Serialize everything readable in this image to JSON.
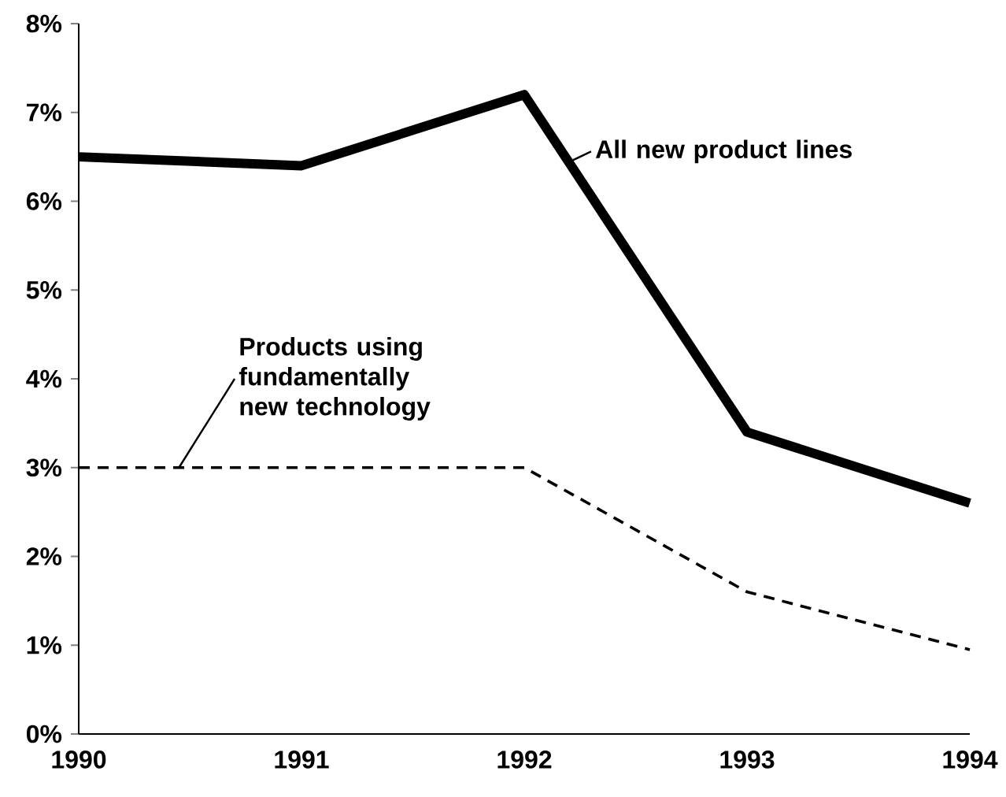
{
  "chart_data": {
    "type": "line",
    "x": [
      1990,
      1991,
      1992,
      1993,
      1994
    ],
    "series": [
      {
        "name": "All new product lines",
        "color": "#000000",
        "values": [
          6.5,
          6.4,
          7.2,
          3.4,
          2.6
        ],
        "line_style": "solid"
      },
      {
        "name": "Products using fundamentally new technology",
        "color": "#000000",
        "values": [
          3.0,
          3.0,
          3.0,
          1.6,
          0.95
        ],
        "line_style": "dashed"
      }
    ],
    "xlim": [
      1990,
      1994
    ],
    "ylim": [
      0,
      8
    ],
    "xticks": [
      1990,
      1991,
      1992,
      1993,
      1994
    ],
    "yticks": [
      {
        "value": 0,
        "label": "0%"
      },
      {
        "value": 1,
        "label": "1%"
      },
      {
        "value": 2,
        "label": "2%"
      },
      {
        "value": 3,
        "label": "3%"
      },
      {
        "value": 4,
        "label": "4%"
      },
      {
        "value": 5,
        "label": "5%"
      },
      {
        "value": 6,
        "label": "6%"
      },
      {
        "value": 7,
        "label": "7%"
      },
      {
        "value": 8,
        "label": "8%"
      }
    ],
    "grid": false,
    "marker": "none"
  }
}
